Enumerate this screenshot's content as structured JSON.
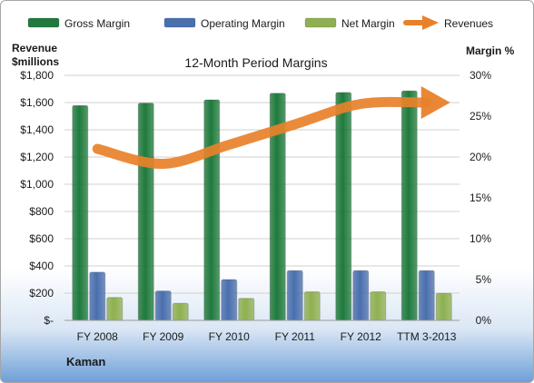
{
  "chart_data": {
    "type": "bar",
    "title": "12-Month Period Margins",
    "company": "Kaman",
    "categories": [
      "FY 2008",
      "FY 2009",
      "FY 2010",
      "FY 2011",
      "FY 2012",
      "TTM 3-2013"
    ],
    "y_left": {
      "label_line1": "Revenue",
      "label_line2": "$millions",
      "range": [
        0,
        1800
      ],
      "ticks": [
        0,
        200,
        400,
        600,
        800,
        1000,
        1200,
        1400,
        1600,
        1800
      ],
      "tick_labels": [
        "$-",
        "$200",
        "$400",
        "$600",
        "$800",
        "$1,000",
        "$1,200",
        "$1,400",
        "$1,600",
        "$1,800"
      ]
    },
    "y_right": {
      "label": "Margin %",
      "range": [
        0,
        30
      ],
      "ticks": [
        0,
        5,
        10,
        15,
        20,
        25,
        30
      ],
      "tick_labels": [
        "0%",
        "5%",
        "10%",
        "15%",
        "20%",
        "25%",
        "30%"
      ]
    },
    "series": [
      {
        "name": "Gross Margin",
        "axis": "right",
        "kind": "bar",
        "color": "#1f7a3c",
        "values": [
          26.3,
          26.6,
          27.0,
          27.8,
          27.9,
          28.1
        ]
      },
      {
        "name": "Operating Margin",
        "axis": "right",
        "kind": "bar",
        "color": "#4a6fad",
        "values": [
          5.9,
          3.6,
          5.0,
          6.1,
          6.1,
          6.1
        ]
      },
      {
        "name": "Net Margin",
        "axis": "right",
        "kind": "bar",
        "color": "#8fb050",
        "values": [
          2.8,
          2.1,
          2.7,
          3.5,
          3.5,
          3.3
        ]
      },
      {
        "name": "Revenues",
        "axis": "left",
        "kind": "line",
        "color": "#e8812a",
        "values": [
          1260,
          1150,
          1290,
          1440,
          1590,
          1600
        ]
      }
    ],
    "legend_position": "top",
    "grid": true
  }
}
